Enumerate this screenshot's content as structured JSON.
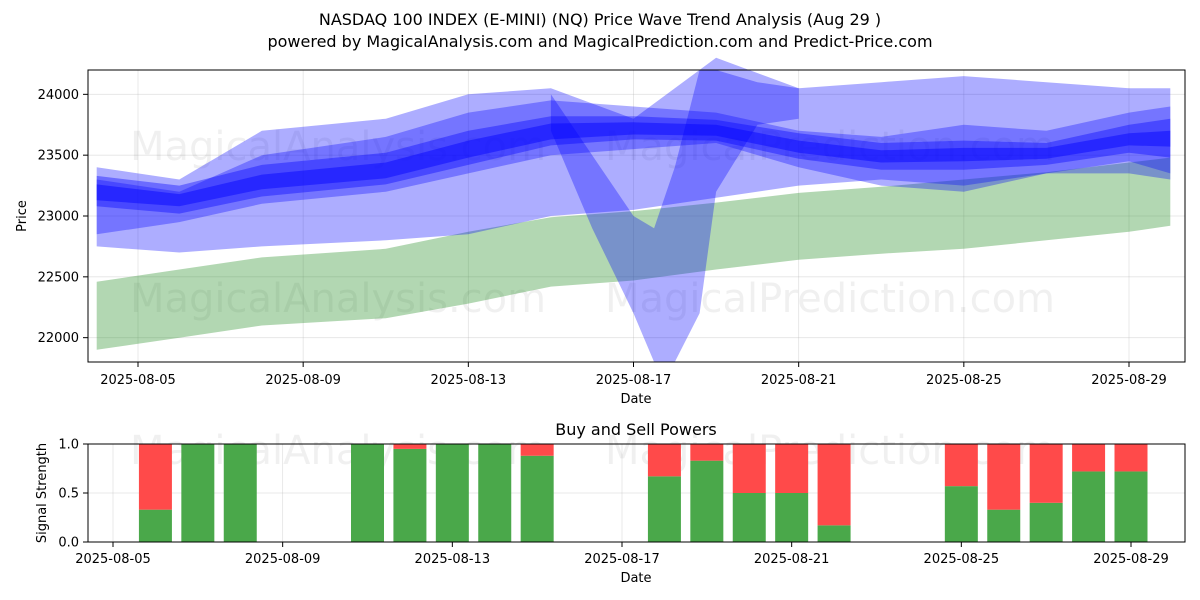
{
  "title_line1": "NASDAQ 100 INDEX (E-MINI) (NQ) Price Wave Trend Analysis (Aug 29 )",
  "title_line2": "powered by MagicalAnalysis.com and MagicalPrediction.com and Predict-Price.com",
  "watermarks": [
    "MagicalAnalysis.com",
    "MagicalPrediction.com"
  ],
  "colors": {
    "band": "#0000ff",
    "trend": "#228b22",
    "buy": "#4aa84a",
    "sell": "#ff4a4a"
  },
  "chart_data": [
    {
      "type": "area",
      "xlabel": "Date",
      "ylabel": "Price",
      "ylim": [
        21800,
        24200
      ],
      "xlim": [
        "2025-08-04",
        "2025-08-30"
      ],
      "x_ticks": [
        "2025-08-05",
        "2025-08-09",
        "2025-08-13",
        "2025-08-17",
        "2025-08-21",
        "2025-08-25",
        "2025-08-29"
      ],
      "y_ticks": [
        22000,
        22500,
        23000,
        23500,
        24000
      ],
      "grid": true,
      "series": [
        {
          "x": [
            "2025-08-04",
            "2025-08-06",
            "2025-08-08",
            "2025-08-11",
            "2025-08-13",
            "2025-08-15",
            "2025-08-17",
            "2025-08-19",
            "2025-08-21",
            "2025-08-23",
            "2025-08-25",
            "2025-08-27",
            "2025-08-29",
            "2025-08-30"
          ],
          "upper": [
            23400,
            23300,
            23700,
            23800,
            24000,
            24050,
            23800,
            24300,
            24050,
            24100,
            24150,
            24100,
            24050,
            24050
          ],
          "lower": [
            22750,
            22700,
            22750,
            22800,
            22850,
            23000,
            23050,
            23150,
            23250,
            23300,
            23250,
            23350,
            23350,
            23300
          ]
        },
        {
          "x": [
            "2025-08-04",
            "2025-08-06",
            "2025-08-08",
            "2025-08-11",
            "2025-08-13",
            "2025-08-15",
            "2025-08-17",
            "2025-08-19",
            "2025-08-21",
            "2025-08-23",
            "2025-08-25",
            "2025-08-27",
            "2025-08-29",
            "2025-08-30"
          ],
          "upper": [
            23300,
            23200,
            23500,
            23650,
            23850,
            23950,
            23900,
            23850,
            23700,
            23650,
            23750,
            23700,
            23850,
            23900
          ],
          "lower": [
            22850,
            22950,
            23100,
            23200,
            23350,
            23500,
            23550,
            23600,
            23400,
            23250,
            23200,
            23350,
            23450,
            23350
          ]
        },
        {
          "x": [
            "2025-08-04",
            "2025-08-06",
            "2025-08-08",
            "2025-08-11",
            "2025-08-13",
            "2025-08-15",
            "2025-08-17",
            "2025-08-19",
            "2025-08-21",
            "2025-08-23",
            "2025-08-25",
            "2025-08-27",
            "2025-08-29",
            "2025-08-30"
          ],
          "upper": [
            23330,
            23250,
            23420,
            23520,
            23700,
            23820,
            23820,
            23790,
            23680,
            23600,
            23620,
            23600,
            23750,
            23800
          ],
          "lower": [
            23080,
            23020,
            23160,
            23260,
            23420,
            23580,
            23630,
            23620,
            23470,
            23380,
            23380,
            23420,
            23520,
            23480
          ]
        },
        {
          "x": [
            "2025-08-04",
            "2025-08-06",
            "2025-08-08",
            "2025-08-11",
            "2025-08-13",
            "2025-08-15",
            "2025-08-17",
            "2025-08-19",
            "2025-08-21",
            "2025-08-23",
            "2025-08-25",
            "2025-08-27",
            "2025-08-29",
            "2025-08-30"
          ],
          "upper": [
            23260,
            23180,
            23340,
            23440,
            23620,
            23760,
            23770,
            23750,
            23620,
            23540,
            23560,
            23560,
            23680,
            23700
          ],
          "lower": [
            23130,
            23080,
            23220,
            23310,
            23480,
            23630,
            23670,
            23660,
            23520,
            23440,
            23450,
            23470,
            23580,
            23570
          ]
        },
        {
          "x": [
            "2025-08-15",
            "2025-08-16",
            "2025-08-17",
            "2025-08-17.5",
            "2025-08-18",
            "2025-08-18.6",
            "2025-08-19",
            "2025-08-20",
            "2025-08-21"
          ],
          "upper": [
            24000,
            23500,
            23000,
            22900,
            23400,
            24200,
            24200,
            24100,
            24050
          ],
          "lower": [
            23700,
            22900,
            22200,
            21800,
            21800,
            22200,
            23200,
            23750,
            23800
          ]
        }
      ]
    },
    {
      "type": "area",
      "name": "trend",
      "x": [
        "2025-08-04",
        "2025-08-06",
        "2025-08-08",
        "2025-08-11",
        "2025-08-13",
        "2025-08-15",
        "2025-08-17",
        "2025-08-19",
        "2025-08-21",
        "2025-08-23",
        "2025-08-25",
        "2025-08-27",
        "2025-08-29",
        "2025-08-30"
      ],
      "upper": [
        22460,
        22560,
        22660,
        22730,
        22870,
        22990,
        23040,
        23110,
        23190,
        23240,
        23300,
        23360,
        23440,
        23480
      ],
      "lower": [
        21900,
        22000,
        22100,
        22160,
        22280,
        22420,
        22470,
        22560,
        22640,
        22690,
        22730,
        22800,
        22870,
        22920
      ]
    },
    {
      "type": "bar",
      "title": "Buy and Sell Powers",
      "xlabel": "Date",
      "ylabel": "Signal Strength",
      "ylim": [
        0,
        1
      ],
      "x_ticks": [
        "2025-08-05",
        "2025-08-09",
        "2025-08-13",
        "2025-08-17",
        "2025-08-21",
        "2025-08-25",
        "2025-08-29"
      ],
      "y_ticks": [
        "0.0",
        "0.5",
        "1.0"
      ],
      "grid": true,
      "categories": [
        "2025-08-06",
        "2025-08-07",
        "2025-08-08",
        "2025-08-11",
        "2025-08-12",
        "2025-08-13",
        "2025-08-14",
        "2025-08-15",
        "2025-08-18",
        "2025-08-19",
        "2025-08-20",
        "2025-08-21",
        "2025-08-22",
        "2025-08-25",
        "2025-08-26",
        "2025-08-27",
        "2025-08-28",
        "2025-08-29"
      ],
      "series": [
        {
          "values": [
            0.33,
            1.0,
            1.0,
            1.0,
            0.95,
            1.0,
            1.0,
            0.88,
            0.67,
            0.83,
            0.5,
            0.5,
            0.17,
            0.57,
            0.33,
            0.4,
            0.72,
            0.72
          ]
        },
        {
          "values": [
            0.67,
            0.0,
            0.0,
            0.0,
            0.05,
            0.0,
            0.0,
            0.12,
            0.33,
            0.17,
            0.5,
            0.5,
            0.83,
            0.43,
            0.67,
            0.6,
            0.28,
            0.28
          ]
        }
      ]
    }
  ]
}
